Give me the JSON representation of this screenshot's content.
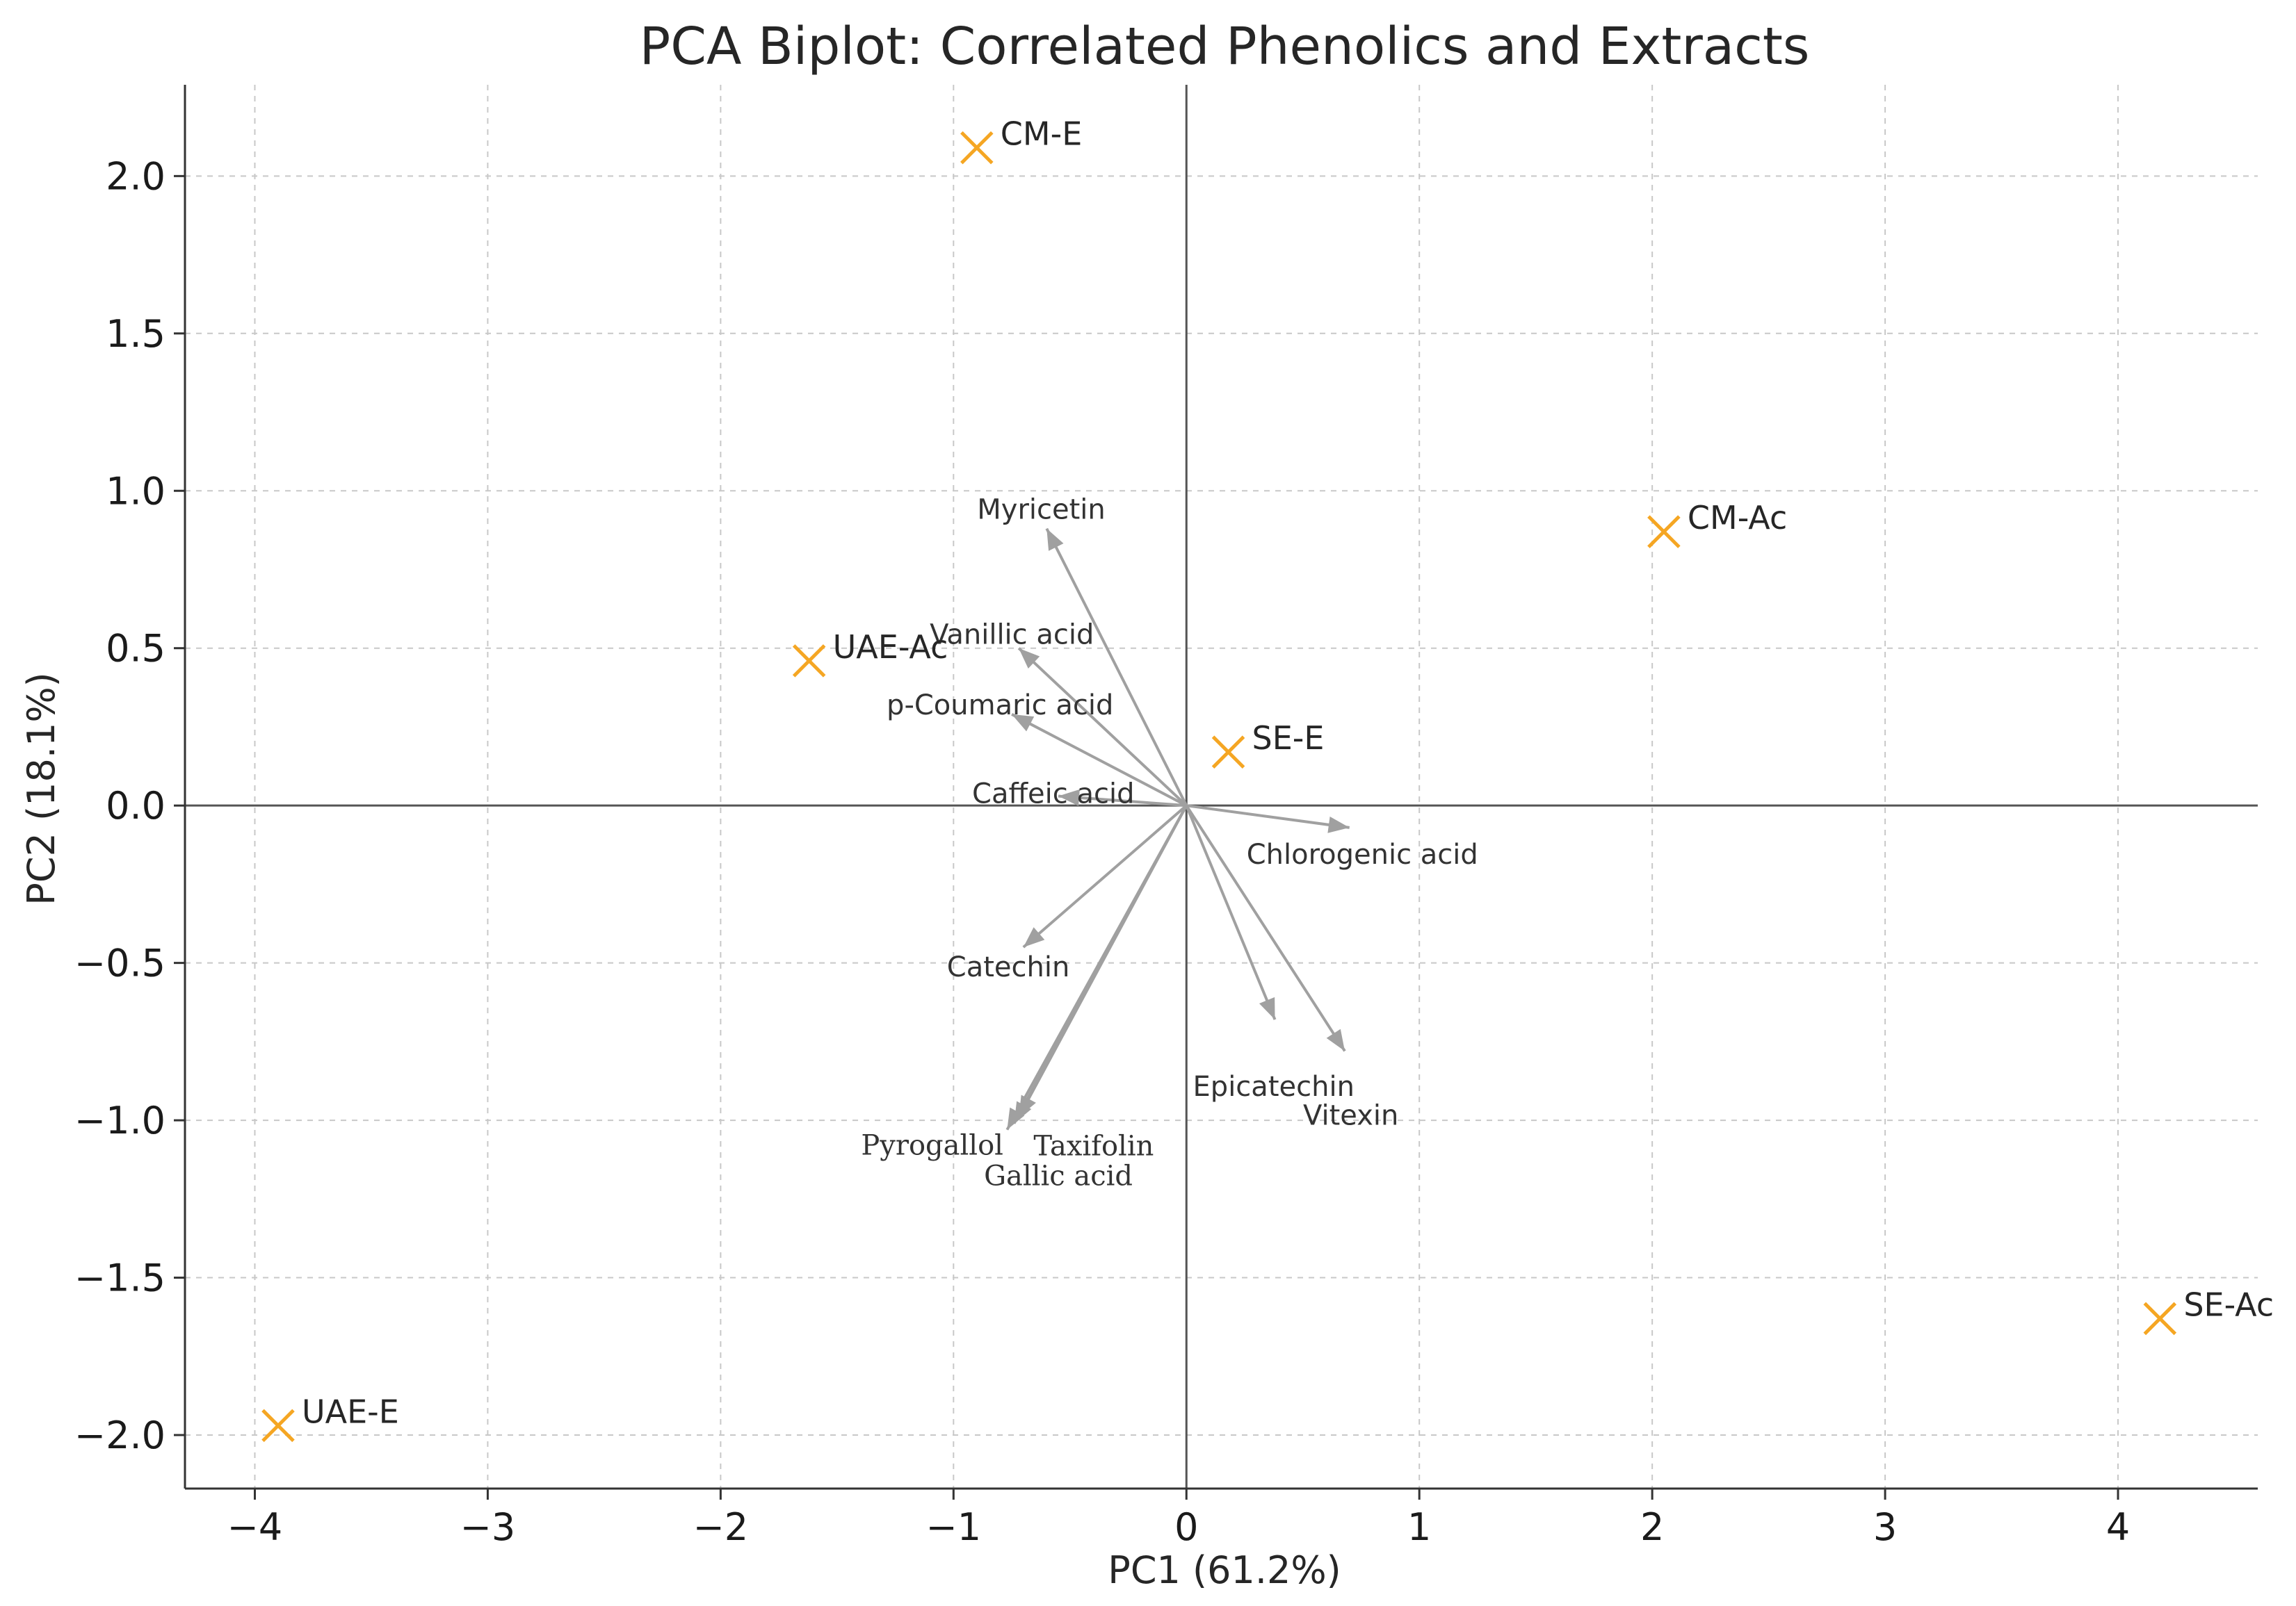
{
  "chart_data": {
    "type": "scatter",
    "title": "PCA Biplot: Correlated Phenolics and Extracts",
    "xlabel": "PC1 (61.2%)",
    "ylabel": "PC2 (18.1%)",
    "xlim": [
      -4.3,
      4.6
    ],
    "ylim": [
      -2.17,
      2.29
    ],
    "xticks": [
      -4,
      -3,
      -2,
      -1,
      0,
      1,
      2,
      3,
      4
    ],
    "yticks": [
      -2.0,
      -1.5,
      -1.0,
      -0.5,
      0.0,
      0.5,
      1.0,
      1.5,
      2.0
    ],
    "xtick_labels": [
      "−4",
      "−3",
      "−2",
      "−1",
      "0",
      "1",
      "2",
      "3",
      "4"
    ],
    "ytick_labels": [
      "−2.0",
      "−1.5",
      "−1.0",
      "−0.5",
      "0.0",
      "0.5",
      "1.0",
      "1.5",
      "2.0"
    ],
    "grid": true,
    "marker_color": "#f5a623",
    "arrow_color": "#a0a0a0",
    "observations": [
      {
        "label": "CM-E",
        "x": -0.9,
        "y": 2.09
      },
      {
        "label": "CM-Ac",
        "x": 2.05,
        "y": 0.87
      },
      {
        "label": "UAE-Ac",
        "x": -1.62,
        "y": 0.46
      },
      {
        "label": "SE-E",
        "x": 0.18,
        "y": 0.17
      },
      {
        "label": "SE-Ac",
        "x": 4.18,
        "y": -1.63
      },
      {
        "label": "UAE-E",
        "x": -3.9,
        "y": -1.97
      }
    ],
    "loadings": [
      {
        "label": "Myricetin",
        "x": -0.6,
        "y": 0.88
      },
      {
        "label": "Vanillic acid",
        "x": -0.72,
        "y": 0.5
      },
      {
        "label": "p-Coumaric acid",
        "x": -0.75,
        "y": 0.29
      },
      {
        "label": "Caffeic acid",
        "x": -0.55,
        "y": 0.03
      },
      {
        "label": "Chlorogenic acid",
        "x": 0.7,
        "y": -0.07
      },
      {
        "label": "Catechin",
        "x": -0.7,
        "y": -0.45
      },
      {
        "label": "Epicatechin",
        "x": 0.38,
        "y": -0.68
      },
      {
        "label": "Vitexin",
        "x": 0.68,
        "y": -0.78
      },
      {
        "label": "Pyrogallol",
        "x": -0.77,
        "y": -1.03
      },
      {
        "label": "Taxifolin",
        "x": -0.74,
        "y": -1.01
      },
      {
        "label": "Gallic acid",
        "x": -0.72,
        "y": -0.99
      }
    ]
  }
}
